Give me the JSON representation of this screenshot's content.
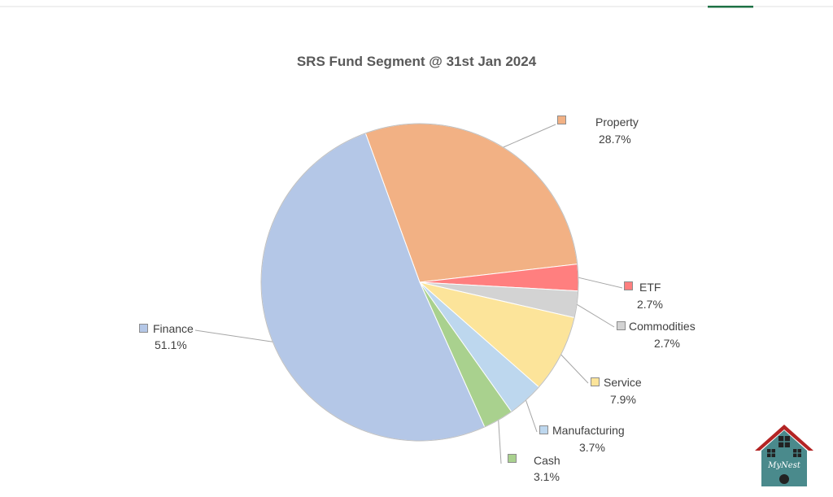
{
  "chart_data": {
    "type": "pie",
    "title": "SRS Fund Segment @ 31st Jan 2024",
    "slices": [
      {
        "name": "Property",
        "value": 28.7,
        "label": "28.7%",
        "color": "#F2B184"
      },
      {
        "name": "ETF",
        "value": 2.7,
        "label": "2.7%",
        "color": "#FF7F7F"
      },
      {
        "name": "Commodities",
        "value": 2.7,
        "label": "2.7%",
        "color": "#D3D3D3"
      },
      {
        "name": "Service",
        "value": 7.9,
        "label": "7.9%",
        "color": "#FCE49A"
      },
      {
        "name": "Manufacturing",
        "value": 3.7,
        "label": "3.7%",
        "color": "#BDD7EE"
      },
      {
        "name": "Cash",
        "value": 3.1,
        "label": "3.1%",
        "color": "#A9D18E"
      },
      {
        "name": "Finance",
        "value": 51.1,
        "label": "51.1%",
        "color": "#B4C7E7"
      }
    ]
  },
  "logo": {
    "text": "MyNest",
    "roof_color": "#B32424",
    "wall_color": "#4A8A8C"
  }
}
